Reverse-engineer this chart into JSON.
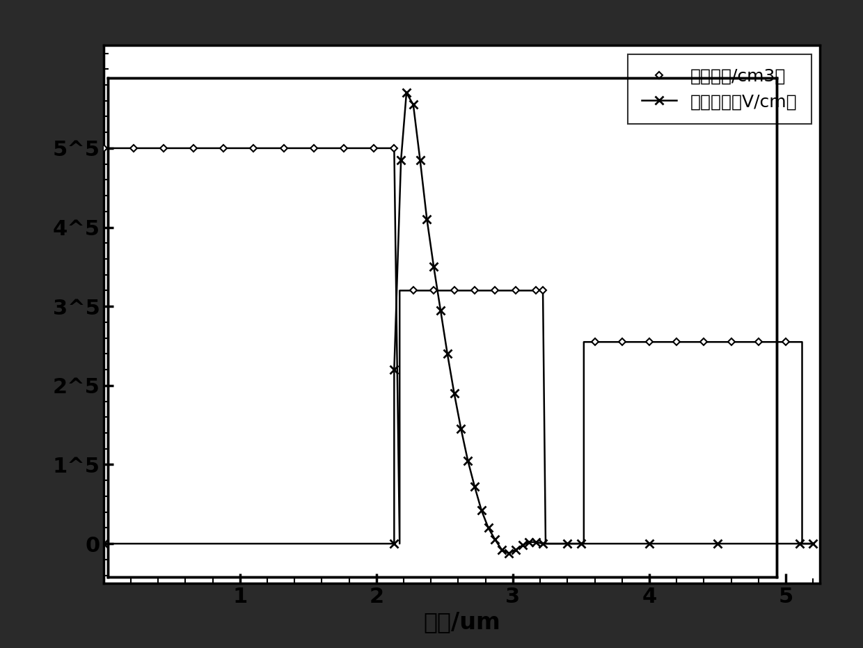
{
  "xlabel": "深度/um",
  "xlim": [
    0.0,
    5.25
  ],
  "ylim": [
    -50000.0,
    630000.0
  ],
  "yticks": [
    0,
    100000.0,
    200000.0,
    300000.0,
    400000.0,
    500000.0
  ],
  "ytick_labels": [
    "0",
    "1^5",
    "2^5",
    "3^5",
    "4^5",
    "5^5"
  ],
  "xticks": [
    1,
    2,
    3,
    4,
    5
  ],
  "legend_label1": "电场强度（V/cm）",
  "legend_label2": "净掺杂（/cm3）",
  "background_color": "#ffffff",
  "border_color": "#1a1a1a",
  "ef_x": [
    0.0,
    2.13,
    2.13,
    2.18,
    2.22,
    2.27,
    2.32,
    2.37,
    2.42,
    2.47,
    2.52,
    2.57,
    2.62,
    2.67,
    2.72,
    2.77,
    2.82,
    2.87,
    2.92,
    2.97,
    3.02,
    3.07,
    3.12,
    3.17,
    3.22,
    3.4,
    3.5,
    4.0,
    4.5,
    5.1,
    5.2
  ],
  "ef_y": [
    0.0,
    0.0,
    220000.0,
    485000.0,
    570000.0,
    555000.0,
    485000.0,
    410000.0,
    350000.0,
    295000.0,
    240000.0,
    190000.0,
    145000.0,
    105000.0,
    72000.0,
    42000.0,
    20000.0,
    5000.0,
    -8000.0,
    -12000.0,
    -8000.0,
    -2000.0,
    2000.0,
    2000.0,
    0.0,
    0.0,
    0.0,
    0.0,
    0.0,
    0.0,
    0.0
  ],
  "nd_x": [
    0.0,
    2.13,
    2.13,
    2.17,
    2.17,
    3.22,
    3.22,
    3.24,
    3.52,
    3.52,
    5.12,
    5.12,
    5.2
  ],
  "nd_y": [
    500000.0,
    500000.0,
    500000.0,
    0.0,
    320000.0,
    320000.0,
    320000.0,
    0.0,
    0.0,
    255000.0,
    255000.0,
    0.0,
    0.0
  ],
  "nd_markers_x": [
    0.0,
    0.22,
    0.44,
    0.66,
    0.88,
    1.1,
    1.32,
    1.54,
    1.76,
    1.98,
    2.13,
    2.27,
    2.42,
    2.57,
    2.72,
    2.87,
    3.02,
    3.17,
    3.22,
    3.6,
    3.8,
    4.0,
    4.2,
    4.4,
    4.6,
    4.8,
    5.0
  ],
  "nd_markers_y_type": "step",
  "fig_border_lw": 25,
  "spine_lw": 2.5
}
